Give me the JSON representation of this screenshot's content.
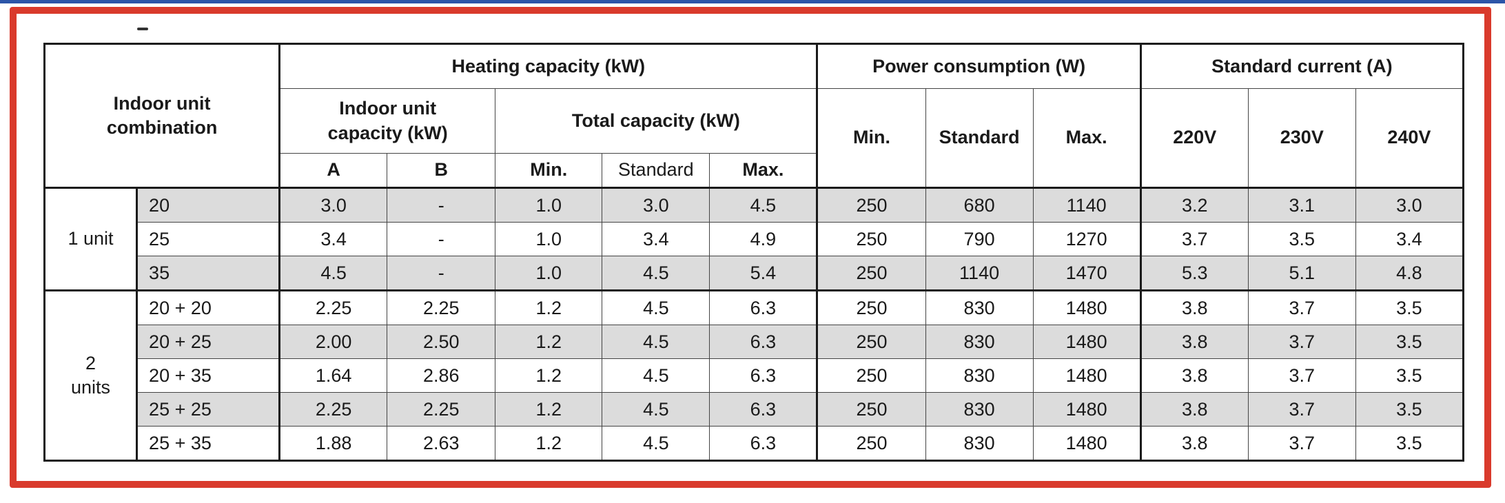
{
  "headers": {
    "combination": "Indoor unit combination",
    "heating": "Heating capacity (kW)",
    "indoor_capacity": "Indoor unit capacity (kW)",
    "total_capacity": "Total capacity (kW)",
    "power": "Power consumption (W)",
    "current": "Standard current (A)",
    "a": "A",
    "b": "B",
    "min": "Min.",
    "standard": "Standard",
    "max": "Max.",
    "power_min": "Min.",
    "power_standard": "Standard",
    "power_max": "Max.",
    "v220": "220V",
    "v230": "230V",
    "v240": "240V"
  },
  "groups": [
    {
      "label": "1 unit"
    },
    {
      "label": "2 units"
    }
  ],
  "rows": [
    {
      "size": "20",
      "a": "3.0",
      "b": "-",
      "tmin": "1.0",
      "tstd": "3.0",
      "tmax": "4.5",
      "pmin": "250",
      "pstd": "680",
      "pmax": "1140",
      "v220": "3.2",
      "v230": "3.1",
      "v240": "3.0"
    },
    {
      "size": "25",
      "a": "3.4",
      "b": "-",
      "tmin": "1.0",
      "tstd": "3.4",
      "tmax": "4.9",
      "pmin": "250",
      "pstd": "790",
      "pmax": "1270",
      "v220": "3.7",
      "v230": "3.5",
      "v240": "3.4"
    },
    {
      "size": "35",
      "a": "4.5",
      "b": "-",
      "tmin": "1.0",
      "tstd": "4.5",
      "tmax": "5.4",
      "pmin": "250",
      "pstd": "1140",
      "pmax": "1470",
      "v220": "5.3",
      "v230": "5.1",
      "v240": "4.8"
    },
    {
      "size": "20 + 20",
      "a": "2.25",
      "b": "2.25",
      "tmin": "1.2",
      "tstd": "4.5",
      "tmax": "6.3",
      "pmin": "250",
      "pstd": "830",
      "pmax": "1480",
      "v220": "3.8",
      "v230": "3.7",
      "v240": "3.5"
    },
    {
      "size": "20 + 25",
      "a": "2.00",
      "b": "2.50",
      "tmin": "1.2",
      "tstd": "4.5",
      "tmax": "6.3",
      "pmin": "250",
      "pstd": "830",
      "pmax": "1480",
      "v220": "3.8",
      "v230": "3.7",
      "v240": "3.5"
    },
    {
      "size": "20 + 35",
      "a": "1.64",
      "b": "2.86",
      "tmin": "1.2",
      "tstd": "4.5",
      "tmax": "6.3",
      "pmin": "250",
      "pstd": "830",
      "pmax": "1480",
      "v220": "3.8",
      "v230": "3.7",
      "v240": "3.5"
    },
    {
      "size": "25 + 25",
      "a": "2.25",
      "b": "2.25",
      "tmin": "1.2",
      "tstd": "4.5",
      "tmax": "6.3",
      "pmin": "250",
      "pstd": "830",
      "pmax": "1480",
      "v220": "3.8",
      "v230": "3.7",
      "v240": "3.5"
    },
    {
      "size": "25 + 35",
      "a": "1.88",
      "b": "2.63",
      "tmin": "1.2",
      "tstd": "4.5",
      "tmax": "6.3",
      "pmin": "250",
      "pstd": "830",
      "pmax": "1480",
      "v220": "3.8",
      "v230": "3.7",
      "v240": "3.5"
    }
  ],
  "colors": {
    "frame": "#d93a2c",
    "top_line": "#2c55a8",
    "shade": "#dcdcdc"
  }
}
